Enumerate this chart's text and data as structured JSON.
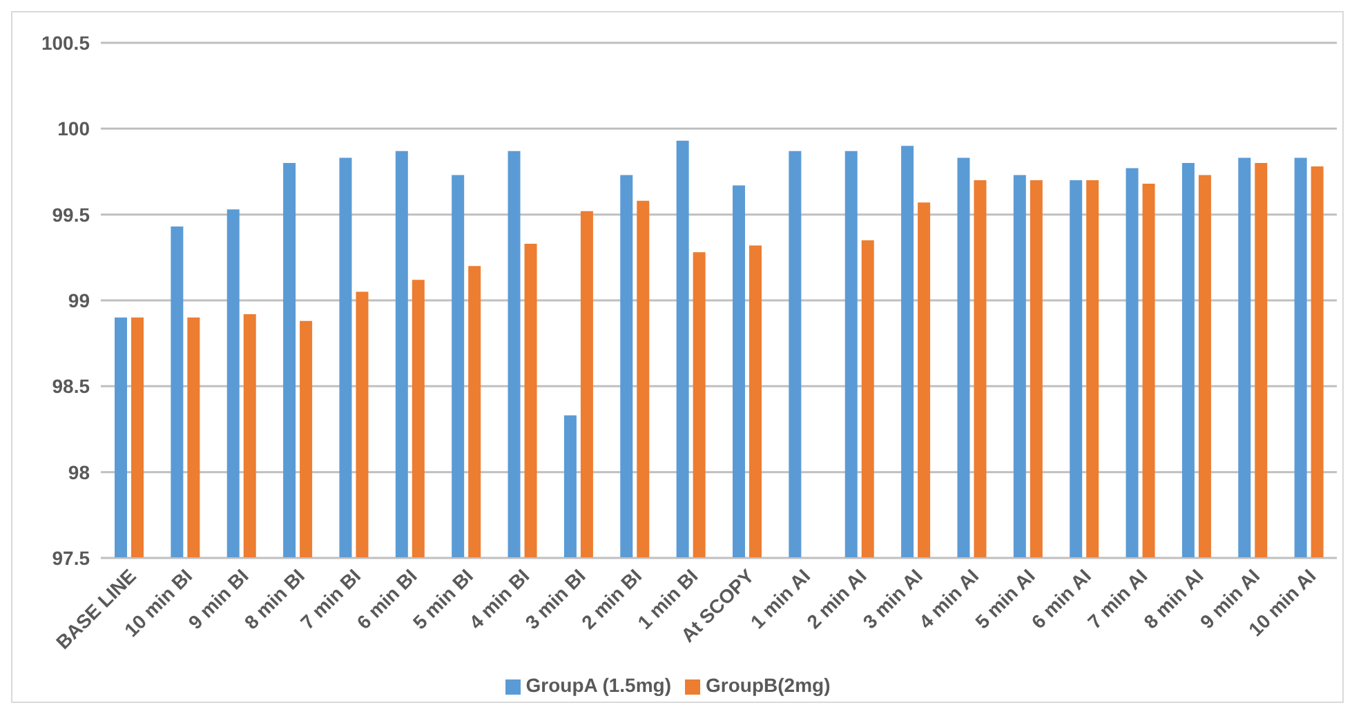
{
  "chart_data": {
    "type": "bar",
    "categories": [
      "BASE LINE",
      "10 min BI",
      "9 min BI",
      "8 min BI",
      "7 min BI",
      "6 min BI",
      "5 min BI",
      "4 min BI",
      "3 min BI",
      "2 min BI",
      "1 min BI",
      "At SCOPY",
      "1 min AI",
      "2 min AI",
      "3 min AI",
      "4 min AI",
      "5 min AI",
      "6 min AI",
      "7 min AI",
      "8 min AI",
      "9 min AI",
      "10 min AI"
    ],
    "series": [
      {
        "name": "GroupA (1.5mg)",
        "color": "#5b9bd5",
        "values": [
          98.9,
          99.43,
          99.53,
          99.8,
          99.83,
          99.87,
          99.73,
          99.87,
          98.33,
          99.73,
          99.93,
          99.67,
          99.87,
          99.87,
          99.9,
          99.83,
          99.73,
          99.7,
          99.77,
          99.8,
          99.83,
          99.83
        ]
      },
      {
        "name": "GroupB(2mg)",
        "color": "#ed7d31",
        "values": [
          98.9,
          98.9,
          98.92,
          98.88,
          99.05,
          99.12,
          99.2,
          99.33,
          99.52,
          99.58,
          99.28,
          99.32,
          null,
          99.35,
          99.57,
          99.7,
          99.7,
          99.7,
          99.68,
          99.73,
          99.8,
          99.78
        ]
      }
    ],
    "ylim": [
      97.5,
      100.5
    ],
    "yticks": [
      97.5,
      98,
      98.5,
      99,
      99.5,
      100,
      100.5
    ],
    "grid": "y",
    "legend": "bottom"
  }
}
